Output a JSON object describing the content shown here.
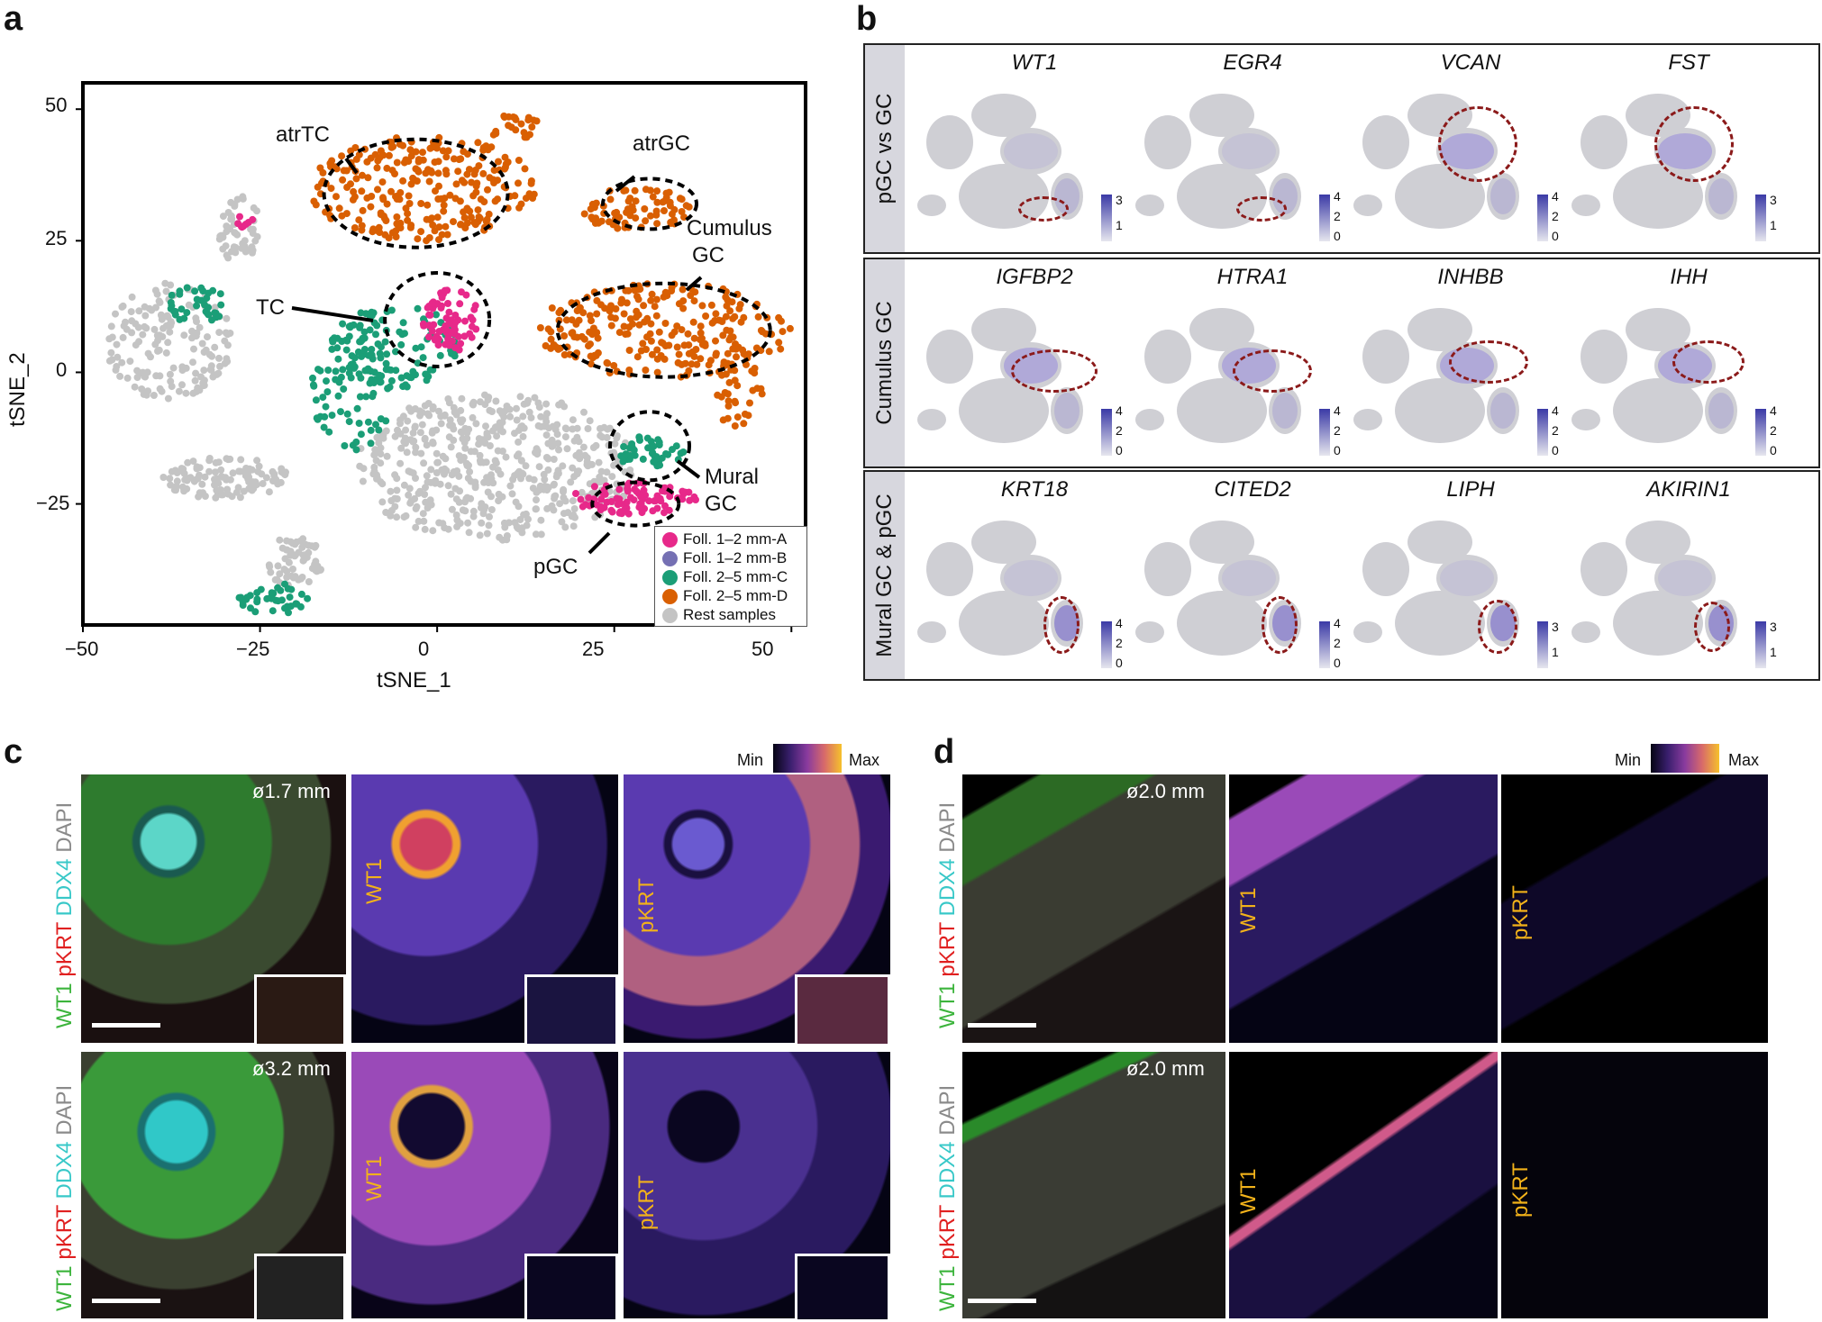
{
  "panel_a": {
    "letter": "a",
    "chart_data": {
      "type": "scatter",
      "xlabel": "tSNE_1",
      "ylabel": "tSNE_2",
      "xlim": [
        -50,
        52
      ],
      "ylim": [
        -48,
        55
      ],
      "x_ticks": [
        "−50",
        "−25",
        "0",
        "25",
        "50"
      ],
      "y_ticks": [
        "50",
        "25",
        "0",
        "−25"
      ],
      "series": [
        {
          "name": "Foll. 1–2 mm-A",
          "color": "#e7298a"
        },
        {
          "name": "Foll. 1–2 mm-B",
          "color": "#7570b3"
        },
        {
          "name": "Foll. 2–5 mm-C",
          "color": "#1b9e77"
        },
        {
          "name": "Foll. 2–5 mm-D",
          "color": "#d95f02"
        },
        {
          "name": "Rest samples",
          "color": "#c4c4c4"
        }
      ],
      "annotations": [
        "atrTC",
        "atrGC",
        "Cumulus GC",
        "TC",
        "Mural GC",
        "pGC"
      ],
      "grid": false,
      "legend_position": "bottom-right"
    },
    "annotation_lines": {
      "cumulus": [
        "Cumulus",
        "GC"
      ],
      "mural": [
        "Mural",
        "GC"
      ]
    }
  },
  "panel_b": {
    "letter": "b",
    "rows": [
      {
        "label": "pGC vs GC",
        "genes": [
          {
            "name": "WT1",
            "scale": [
              "3",
              "1"
            ]
          },
          {
            "name": "EGR4",
            "scale": [
              "4",
              "2",
              "0"
            ]
          },
          {
            "name": "VCAN",
            "scale": [
              "4",
              "2",
              "0"
            ]
          },
          {
            "name": "FST",
            "scale": [
              "3",
              "1"
            ]
          }
        ]
      },
      {
        "label": "Cumulus GC",
        "genes": [
          {
            "name": "IGFBP2",
            "scale": [
              "4",
              "2",
              "0"
            ]
          },
          {
            "name": "HTRA1",
            "scale": [
              "4",
              "2",
              "0"
            ]
          },
          {
            "name": "INHBB",
            "scale": [
              "4",
              "2",
              "0"
            ]
          },
          {
            "name": "IHH",
            "scale": [
              "4",
              "2",
              "0"
            ]
          }
        ]
      },
      {
        "label": "Mural GC & pGC",
        "genes": [
          {
            "name": "KRT18",
            "scale": [
              "4",
              "2",
              "0"
            ]
          },
          {
            "name": "CITED2",
            "scale": [
              "4",
              "2",
              "0"
            ]
          },
          {
            "name": "LIPH",
            "scale": [
              "3",
              "1"
            ]
          },
          {
            "name": "AKIRIN1",
            "scale": [
              "3",
              "1"
            ]
          }
        ]
      }
    ]
  },
  "panel_c": {
    "letter": "c",
    "colorbar": {
      "min": "Min",
      "max": "Max"
    },
    "rows": [
      {
        "diameter": "ø1.7 mm"
      },
      {
        "diameter": "ø3.2 mm"
      }
    ],
    "labels": {
      "wt1": "WT1",
      "pkrt": "pKRT",
      "ddx4": "DDX4",
      "dapi": "DAPI"
    },
    "colors": {
      "wt1": "#3cb43c",
      "pkrt": "#e02020",
      "ddx4": "#38c8c8",
      "dapi": "#8a8a8a",
      "mono": "#f2b21a"
    }
  },
  "panel_d": {
    "letter": "d",
    "colorbar": {
      "min": "Min",
      "max": "Max"
    },
    "rows": [
      {
        "diameter": "ø2.0 mm"
      },
      {
        "diameter": "ø2.0 mm"
      }
    ],
    "labels": {
      "wt1": "WT1",
      "pkrt": "pKRT",
      "ddx4": "DDX4",
      "dapi": "DAPI"
    }
  }
}
